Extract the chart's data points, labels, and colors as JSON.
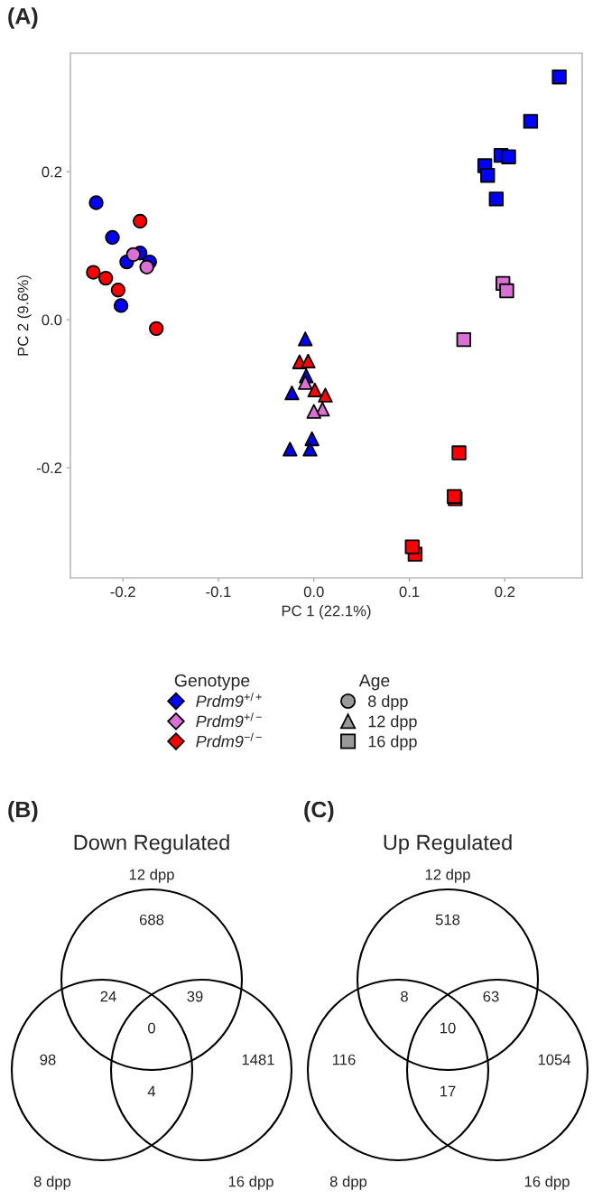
{
  "chart_data": [
    {
      "type": "scatter",
      "xlabel": "PC 1 (22.1%)",
      "ylabel": "PC 2 (9.6%)",
      "xlim": [
        -0.255,
        0.281
      ],
      "ylim": [
        -0.349,
        0.36
      ],
      "xticks": [
        -0.2,
        -0.1,
        {
          "value": 0,
          "label": "0.0"
        },
        0.1,
        0.2
      ],
      "yticks": [
        -0.2,
        {
          "value": 0,
          "label": "0.0"
        },
        0.2
      ],
      "grid": false,
      "annotations": [
        "(A)",
        "Genotype",
        "Prdm9$^{+/+}$",
        "Prdm9$^{+/−}$",
        "Prdm9$^{−/−}$",
        "Age",
        "8 dpp",
        "12 dpp",
        "16 dpp"
      ],
      "series": [
        {
          "color": "#0000ff",
          "marker": "circle",
          "x": [
            -0.228,
            -0.211,
            -0.196,
            -0.182,
            -0.172,
            -0.202
          ],
          "values": [
            0.158,
            0.111,
            0.078,
            0.09,
            0.078,
            0.019
          ]
        },
        {
          "color": "#0000ff",
          "marker": "triangle",
          "x": [
            -0.009,
            -0.008,
            -0.023,
            -0.002,
            -0.025,
            -0.004
          ],
          "values": [
            -0.026,
            -0.076,
            -0.099,
            -0.161,
            -0.175,
            -0.175
          ]
        },
        {
          "color": "#0000ff",
          "marker": "square",
          "x": [
            0.257,
            0.227,
            0.196,
            0.204,
            0.179,
            0.182,
            0.191
          ],
          "values": [
            0.328,
            0.268,
            0.222,
            0.22,
            0.208,
            0.195,
            0.163
          ]
        },
        {
          "color": "#da70d6",
          "marker": "circle",
          "x": [
            -0.189,
            -0.175
          ],
          "values": [
            0.088,
            0.071
          ]
        },
        {
          "color": "#da70d6",
          "marker": "triangle",
          "x": [
            -0.009,
            0.009,
            0.0
          ],
          "values": [
            -0.085,
            -0.121,
            -0.124
          ]
        },
        {
          "color": "#da70d6",
          "marker": "square",
          "x": [
            0.198,
            0.202,
            0.157
          ],
          "values": [
            0.049,
            0.039,
            -0.027
          ]
        },
        {
          "color": "#ff0000",
          "marker": "circle",
          "x": [
            -0.182,
            -0.231,
            -0.218,
            -0.205,
            -0.165
          ],
          "values": [
            0.133,
            0.064,
            0.056,
            0.04,
            -0.012
          ]
        },
        {
          "color": "#ff0000",
          "marker": "triangle",
          "x": [
            -0.015,
            -0.006,
            0.001,
            0.012
          ],
          "values": [
            -0.057,
            -0.056,
            -0.095,
            -0.102
          ]
        },
        {
          "color": "#ff0000",
          "marker": "square",
          "x": [
            0.152,
            0.148,
            0.147,
            0.106,
            0.103
          ],
          "values": [
            -0.18,
            -0.242,
            -0.239,
            -0.317,
            -0.307
          ]
        }
      ]
    },
    {
      "type": "other",
      "title": "Down Regulated",
      "annotations": [
        "(B)",
        "8 dpp",
        "12 dpp",
        "16 dpp",
        "98",
        "688",
        "1481",
        "24",
        "4",
        "39",
        "0"
      ]
    },
    {
      "type": "other",
      "title": "Up Regulated",
      "annotations": [
        "(C)",
        "8 dpp",
        "12 dpp",
        "16 dpp",
        "116",
        "518",
        "1054",
        "8",
        "17",
        "63",
        "10"
      ]
    }
  ]
}
